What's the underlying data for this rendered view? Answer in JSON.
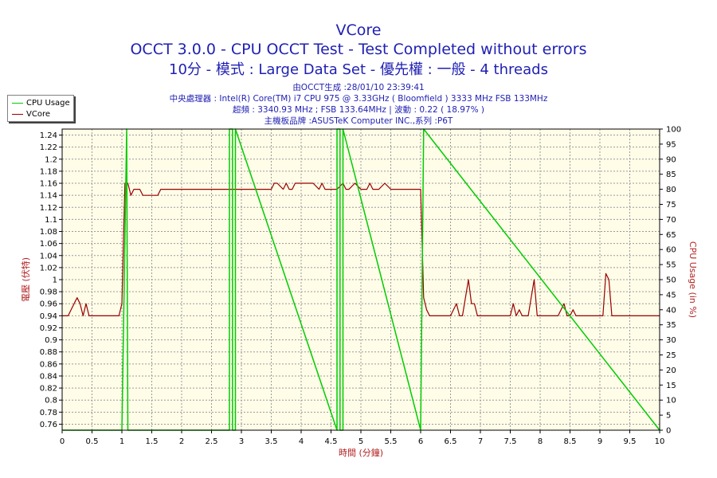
{
  "header": {
    "title": "VCore",
    "subtitle1": "OCCT 3.0.0 - CPU OCCT Test - Test Completed without errors",
    "subtitle2": "10分 - 模式 : Large Data Set - 優先權 : 一般 - 4 threads",
    "info1": "由OCCT生成 :28/01/10 23:39:41",
    "info2": "中央處理器 : Intel(R) Core(TM) i7 CPU 975 @ 3.33GHz ( Bloomfield ) 3333 MHz FSB 133MHz",
    "info3": "超頻 : 3340.93 MHz ; FSB 133.64MHz | 波動 : 0.22 ( 18.97% )",
    "info4": "主機板品牌 :ASUSTeK Computer INC.,系列 :P6T"
  },
  "legend": [
    {
      "label": "CPU Usage",
      "color": "#00cc00"
    },
    {
      "label": "VCore",
      "color": "#990000"
    }
  ],
  "chart_data": {
    "type": "line",
    "xlabel": "時間 (分鐘)",
    "ylabel": "電壓 (伏特)",
    "y2label": "CPU Usage (in %)",
    "xlim": [
      0,
      10
    ],
    "ylim": [
      0.75,
      1.25
    ],
    "y2lim": [
      0,
      100
    ],
    "x_ticks": [
      "0",
      "0.5",
      "1",
      "1.5",
      "2",
      "2.5",
      "3",
      "3.5",
      "4",
      "4.5",
      "5",
      "5.5",
      "6",
      "6.5",
      "7",
      "7.5",
      "8",
      "8.5",
      "9",
      "9.5",
      "10"
    ],
    "y_ticks": [
      "0.76",
      "0.78",
      "0.8",
      "0.82",
      "0.84",
      "0.86",
      "0.88",
      "0.9",
      "0.92",
      "0.94",
      "0.96",
      "0.98",
      "1",
      "1.02",
      "1.04",
      "1.06",
      "1.08",
      "1.1",
      "1.12",
      "1.14",
      "1.16",
      "1.18",
      "1.2",
      "1.22",
      "1.24"
    ],
    "y2_ticks": [
      "0",
      "5",
      "10",
      "15",
      "20",
      "25",
      "30",
      "35",
      "40",
      "45",
      "50",
      "55",
      "60",
      "65",
      "70",
      "75",
      "80",
      "85",
      "90",
      "95",
      "100"
    ],
    "grid": true,
    "background": "#fffde8",
    "series": [
      {
        "name": "VCore",
        "color": "#990000",
        "axis": "left",
        "x": [
          0,
          0.1,
          0.2,
          0.25,
          0.3,
          0.35,
          0.4,
          0.45,
          0.5,
          0.95,
          1.0,
          1.05,
          1.1,
          1.15,
          1.2,
          1.3,
          1.35,
          1.4,
          1.5,
          1.6,
          1.65,
          1.7,
          1.8,
          2.0,
          2.5,
          3.0,
          3.5,
          3.55,
          3.6,
          3.7,
          3.75,
          3.8,
          3.85,
          3.9,
          4.0,
          4.2,
          4.3,
          4.35,
          4.4,
          4.5,
          4.6,
          4.7,
          4.75,
          4.8,
          4.9,
          5.0,
          5.1,
          5.15,
          5.2,
          5.3,
          5.4,
          5.5,
          5.6,
          6.0,
          6.05,
          6.1,
          6.15,
          6.2,
          6.3,
          6.5,
          6.6,
          6.65,
          6.7,
          6.8,
          6.85,
          6.9,
          6.95,
          7.0,
          7.5,
          7.55,
          7.6,
          7.65,
          7.7,
          7.8,
          7.9,
          7.95,
          8.0,
          8.05,
          8.1,
          8.3,
          8.4,
          8.45,
          8.5,
          8.55,
          8.6,
          8.65,
          8.7,
          8.8,
          9.0,
          9.05,
          9.1,
          9.15,
          9.2,
          9.3,
          9.5,
          10.0
        ],
        "y": [
          0.94,
          0.94,
          0.96,
          0.97,
          0.96,
          0.94,
          0.96,
          0.94,
          0.94,
          0.94,
          0.96,
          1.16,
          1.16,
          1.14,
          1.15,
          1.15,
          1.14,
          1.14,
          1.14,
          1.14,
          1.15,
          1.15,
          1.15,
          1.15,
          1.15,
          1.15,
          1.15,
          1.16,
          1.16,
          1.15,
          1.16,
          1.15,
          1.15,
          1.16,
          1.16,
          1.16,
          1.15,
          1.16,
          1.15,
          1.15,
          1.15,
          1.16,
          1.15,
          1.15,
          1.16,
          1.15,
          1.15,
          1.16,
          1.15,
          1.15,
          1.16,
          1.15,
          1.15,
          1.15,
          0.97,
          0.95,
          0.94,
          0.94,
          0.94,
          0.94,
          0.96,
          0.94,
          0.94,
          1.0,
          0.96,
          0.96,
          0.94,
          0.94,
          0.94,
          0.96,
          0.94,
          0.95,
          0.94,
          0.94,
          1.0,
          0.94,
          0.94,
          0.94,
          0.94,
          0.94,
          0.96,
          0.94,
          0.94,
          0.95,
          0.94,
          0.94,
          0.94,
          0.94,
          0.94,
          0.94,
          1.01,
          1.0,
          0.94,
          0.94,
          0.94,
          0.94
        ]
      },
      {
        "name": "CPU Usage",
        "color": "#00cc00",
        "axis": "right",
        "x": [
          0,
          1.0,
          1.08,
          1.1,
          2.8,
          2.8,
          2.85,
          2.85,
          2.9,
          2.9,
          4.6,
          4.6,
          4.65,
          4.65,
          4.7,
          4.7,
          6.0,
          6.05,
          10
        ],
        "y": [
          0,
          0,
          100,
          0,
          0,
          100,
          100,
          0,
          0,
          100,
          0,
          100,
          100,
          0,
          0,
          100,
          0,
          100,
          0
        ]
      }
    ]
  }
}
